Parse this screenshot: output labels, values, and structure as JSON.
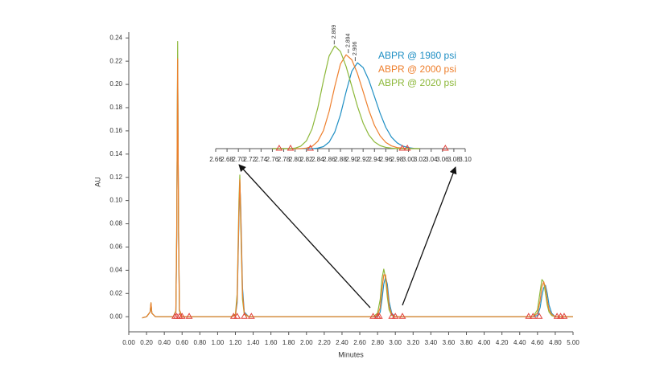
{
  "chart_data": [
    {
      "type": "line",
      "xlabel": "Minutes",
      "ylabel": "AU",
      "xlim": [
        0,
        5
      ],
      "ylim": [
        -0.013,
        0.245
      ],
      "xticks": [
        {
          "value": 0,
          "label": "0.00"
        },
        {
          "value": 0.2,
          "label": "0.20"
        },
        {
          "value": 0.4,
          "label": "0.40"
        },
        {
          "value": 0.6,
          "label": "0.60"
        },
        {
          "value": 0.8,
          "label": "0.80"
        },
        {
          "value": 1,
          "label": "1.00"
        },
        {
          "value": 1.2,
          "label": "1.20"
        },
        {
          "value": 1.4,
          "label": "1.40"
        },
        {
          "value": 1.6,
          "label": "1.60"
        },
        {
          "value": 1.8,
          "label": "1.80"
        },
        {
          "value": 2,
          "label": "2.00"
        },
        {
          "value": 2.2,
          "label": "2.20"
        },
        {
          "value": 2.4,
          "label": "2.40"
        },
        {
          "value": 2.6,
          "label": "2.60"
        },
        {
          "value": 2.8,
          "label": "2.80"
        },
        {
          "value": 3,
          "label": "3.00"
        },
        {
          "value": 3.2,
          "label": "3.20"
        },
        {
          "value": 3.4,
          "label": "3.40"
        },
        {
          "value": 3.6,
          "label": "3.60"
        },
        {
          "value": 3.8,
          "label": "3.80"
        },
        {
          "value": 4,
          "label": "4.00"
        },
        {
          "value": 4.2,
          "label": "4.20"
        },
        {
          "value": 4.4,
          "label": "4.40"
        },
        {
          "value": 4.6,
          "label": "4.60"
        },
        {
          "value": 4.8,
          "label": "4.80"
        },
        {
          "value": 5,
          "label": "5.00"
        }
      ],
      "yticks": [
        {
          "value": 0,
          "label": "0.00"
        },
        0.02,
        0.04,
        0.06,
        0.08,
        {
          "value": 0.1,
          "label": "0.10"
        },
        0.12,
        0.14,
        0.16,
        0.18,
        {
          "value": 0.2,
          "label": "0.20"
        },
        0.22,
        0.24
      ],
      "x": [
        0.15,
        0.2,
        0.24,
        0.25,
        0.26,
        0.3,
        0.5,
        0.53,
        0.54,
        0.55,
        0.56,
        0.57,
        0.6,
        1.15,
        1.2,
        1.22,
        1.24,
        1.25,
        1.26,
        1.28,
        1.3,
        1.35,
        2.75,
        2.8,
        2.83,
        2.85,
        2.87,
        2.89,
        2.91,
        2.93,
        2.96,
        3.0,
        4.55,
        4.6,
        4.63,
        4.65,
        4.67,
        4.69,
        4.71,
        4.73,
        4.76,
        4.8,
        4.9,
        5.0
      ],
      "series": [
        {
          "color": "#1f8fc4",
          "values": [
            -0.001,
            0,
            0.004,
            0.011,
            0.003,
            0,
            0,
            0.004,
            0.07,
            0.22,
            0.08,
            0.006,
            0,
            0,
            0.001,
            0.012,
            0.085,
            0.115,
            0.095,
            0.025,
            0.004,
            0,
            0,
            0,
            0.004,
            0.015,
            0.028,
            0.034,
            0.028,
            0.013,
            0.003,
            0,
            0,
            0.001,
            0.008,
            0.018,
            0.025,
            0.027,
            0.02,
            0.01,
            0.003,
            0,
            0,
            0
          ]
        },
        {
          "color": "#8db83a",
          "values": [
            -0.001,
            0,
            0.004,
            0.012,
            0.003,
            0,
            0,
            0.005,
            0.08,
            0.237,
            0.07,
            0.005,
            0,
            0,
            0.002,
            0.02,
            0.1,
            0.122,
            0.08,
            0.015,
            0.002,
            0,
            0,
            0.003,
            0.015,
            0.033,
            0.041,
            0.033,
            0.017,
            0.006,
            0.001,
            0,
            0,
            0.006,
            0.022,
            0.032,
            0.03,
            0.02,
            0.01,
            0.004,
            0.001,
            0,
            0,
            0
          ]
        },
        {
          "color": "#ee7f2d",
          "values": [
            -0.001,
            0,
            0.004,
            0.012,
            0.003,
            0,
            0,
            0.004,
            0.07,
            0.222,
            0.08,
            0.006,
            0,
            0,
            0.001,
            0.015,
            0.09,
            0.118,
            0.09,
            0.02,
            0.003,
            0,
            0,
            0.001,
            0.008,
            0.024,
            0.036,
            0.036,
            0.023,
            0.009,
            0.002,
            0,
            0,
            0.003,
            0.014,
            0.026,
            0.03,
            0.025,
            0.014,
            0.006,
            0.002,
            0,
            0,
            0
          ]
        }
      ],
      "markers": {
        "color": "#e0403a",
        "x": [
          0.52,
          0.54,
          0.57,
          0.6,
          0.68,
          1.18,
          1.22,
          1.3,
          1.38,
          2.75,
          2.8,
          2.82,
          2.96,
          3.0,
          3.08,
          4.5,
          4.55,
          4.62,
          4.82,
          4.86,
          4.9
        ],
        "values": [
          0,
          0,
          0,
          0,
          0,
          0,
          0,
          0,
          0,
          0,
          0,
          0,
          0,
          0,
          0,
          0,
          0,
          0,
          0,
          0,
          0
        ]
      }
    },
    {
      "type": "line",
      "xlim": [
        2.66,
        3.1
      ],
      "ylim": [
        0,
        0.043
      ],
      "xticks": [
        2.66,
        2.68,
        {
          "value": 2.7,
          "label": "2.70"
        },
        2.72,
        2.74,
        2.76,
        2.78,
        {
          "value": 2.8,
          "label": "2.80"
        },
        2.82,
        2.84,
        2.86,
        2.88,
        {
          "value": 2.9,
          "label": "2.90"
        },
        2.92,
        2.94,
        2.96,
        2.98,
        {
          "value": 3,
          "label": "3.00"
        },
        3.02,
        3.04,
        3.06,
        3.08,
        {
          "value": 3.1,
          "label": "3.10"
        }
      ],
      "x": [
        2.76,
        2.77,
        2.78,
        2.79,
        2.8,
        2.81,
        2.82,
        2.83,
        2.84,
        2.85,
        2.86,
        2.87,
        2.88,
        2.89,
        2.9,
        2.91,
        2.92,
        2.93,
        2.94,
        2.95,
        2.96,
        2.97,
        2.98,
        2.99,
        3.0,
        3.01,
        3.02
      ],
      "series": [
        {
          "name": "ABPR @ 1980 psi",
          "color": "#1f8fc4",
          "values": [
            0,
            0,
            0,
            0,
            0,
            0,
            0,
            0,
            0.0002,
            0.0008,
            0.0026,
            0.0066,
            0.0135,
            0.0227,
            0.0309,
            0.0343,
            0.0324,
            0.0274,
            0.0208,
            0.0141,
            0.0085,
            0.0046,
            0.0023,
            0.001,
            0.0004,
            0.0001,
            0
          ]
        },
        {
          "name": "ABPR @ 2000 psi",
          "color": "#ee7f2d",
          "values": [
            0,
            0,
            0,
            0,
            0,
            0,
            0.0002,
            0.0009,
            0.0029,
            0.0072,
            0.0148,
            0.0248,
            0.0338,
            0.0375,
            0.0355,
            0.03,
            0.0228,
            0.0154,
            0.0093,
            0.0051,
            0.0025,
            0.0011,
            0.0004,
            0.0002,
            0,
            0,
            0
          ]
        },
        {
          "name": "ABPR @ 2020 psi",
          "color": "#8db83a",
          "values": [
            0,
            0,
            0,
            0,
            0.0002,
            0.001,
            0.0031,
            0.0079,
            0.0162,
            0.0271,
            0.037,
            0.041,
            0.0388,
            0.0328,
            0.0249,
            0.0169,
            0.0102,
            0.0055,
            0.0027,
            0.0012,
            0.0005,
            0.0002,
            0,
            0,
            0,
            0,
            0
          ]
        }
      ],
      "annotations": [
        {
          "text": "2.869",
          "x": 2.869
        },
        {
          "text": "2.894",
          "x": 2.894
        },
        {
          "text": "2.906",
          "x": 2.906
        }
      ],
      "markers": {
        "color": "#e0403a",
        "x": [
          2.772,
          2.792,
          2.827,
          2.989,
          2.998,
          3.065
        ],
        "values": [
          0,
          0,
          0,
          0,
          0,
          0
        ]
      }
    }
  ]
}
